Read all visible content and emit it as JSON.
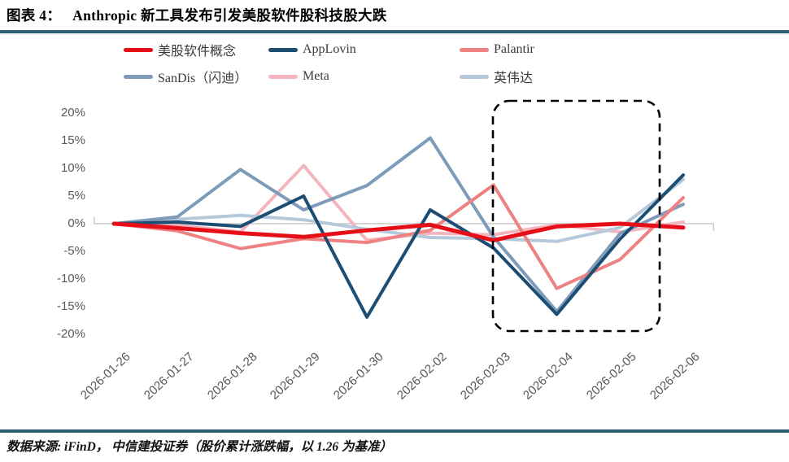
{
  "header": {
    "label": "图表 4：",
    "title": "Anthropic 新工具发布引发美股软件股科技股大跌"
  },
  "footer": {
    "source": "数据来源: iFinD， 中信建投证券（股价累计涨跌幅，以 1.26 为基准）"
  },
  "colors": {
    "divider": "#2b6173",
    "axis_text": "#595959",
    "zero_gridline": "#c9c9c9",
    "highlight_box": "#000000"
  },
  "chart_data": {
    "type": "line",
    "title": "Anthropic 新工具发布引发美股软件股科技股大跌",
    "xlabel": "",
    "ylabel": "",
    "x": [
      "2026-01-26",
      "2026-01-27",
      "2026-01-28",
      "2026-01-29",
      "2026-01-30",
      "2026-02-02",
      "2026-02-03",
      "2026-02-04",
      "2026-02-05",
      "2026-02-06"
    ],
    "ylim": [
      -20,
      20
    ],
    "yticks": [
      {
        "label": "20%",
        "value": 20
      },
      {
        "label": "15%",
        "value": 15
      },
      {
        "label": "10%",
        "value": 10
      },
      {
        "label": "5%",
        "value": 5
      },
      {
        "label": "0%",
        "value": 0
      },
      {
        "label": "-5%",
        "value": -5
      },
      {
        "label": "-10%",
        "value": -10
      },
      {
        "label": "-15%",
        "value": -15
      },
      {
        "label": "-20%",
        "value": -20
      }
    ],
    "grid": "zero-line-only",
    "legend_position": "top",
    "series": [
      {
        "name": "美股软件概念",
        "color": "#e60e17",
        "width": 5,
        "values": [
          0,
          -0.8,
          -1.7,
          -2.4,
          -1.2,
          -0.2,
          -3.0,
          -0.5,
          0.0,
          -0.7
        ]
      },
      {
        "name": "AppLovin",
        "color": "#1c4e73",
        "width": 4,
        "values": [
          0,
          0.3,
          -0.5,
          5.0,
          -16.9,
          2.5,
          -4.4,
          -16.4,
          -2.8,
          8.8
        ]
      },
      {
        "name": "Palantir",
        "color": "#ee8181",
        "width": 4,
        "values": [
          0,
          -1.3,
          -4.5,
          -2.7,
          -3.4,
          -1.2,
          7.0,
          -11.7,
          -6.5,
          4.7
        ]
      },
      {
        "name": "SanDis（闪迪）",
        "color": "#7e9cba",
        "width": 4,
        "values": [
          0,
          1.2,
          9.8,
          2.5,
          6.9,
          15.5,
          -2.4,
          -15.9,
          -1.8,
          3.5
        ]
      },
      {
        "name": "Meta",
        "color": "#f5b5be",
        "width": 4,
        "values": [
          0,
          -0.3,
          -1.5,
          10.5,
          -3.0,
          -1.7,
          -2.0,
          -0.2,
          -1.5,
          0.3
        ]
      },
      {
        "name": "英伟达",
        "color": "#b6c9da",
        "width": 4,
        "values": [
          0,
          0.8,
          1.5,
          0.7,
          -1.0,
          -2.5,
          -2.7,
          -3.2,
          -0.7,
          8.0
        ]
      }
    ],
    "draw_order": [
      4,
      5,
      3,
      2,
      1,
      0
    ],
    "highlight_box": {
      "from": "2026-02-03",
      "to": "2026-02-05",
      "style": "black-dashed-rounded"
    }
  }
}
